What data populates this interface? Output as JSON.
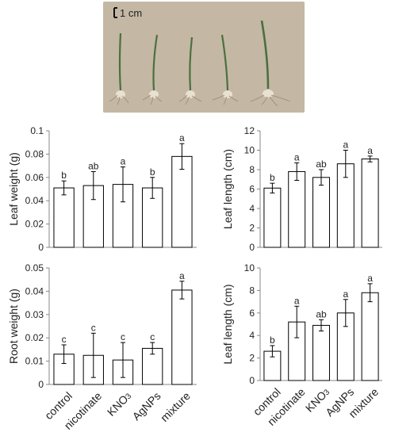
{
  "photo": {
    "scale_label": "1 cm",
    "colors": {
      "background": "#c8bba8",
      "leaf": "#3f6a3a",
      "root": "#9a8a70"
    }
  },
  "chart_data": [
    {
      "type": "bar",
      "categories": [
        "control",
        "nicotinate",
        "KNO3",
        "AgNPs",
        "mixture"
      ],
      "values": [
        0.051,
        0.053,
        0.054,
        0.051,
        0.078
      ],
      "errors": [
        0.006,
        0.012,
        0.015,
        0.009,
        0.011
      ],
      "letters": [
        "b",
        "ab",
        "a",
        "b",
        "a"
      ],
      "title": "",
      "xlabel": "",
      "ylabel": "Leaf weight (g)",
      "ylim": [
        0,
        0.1
      ],
      "yticks": [
        "0",
        "0.02",
        "0.04",
        "0.06",
        "0.08",
        "0.1"
      ],
      "show_xlabels": false,
      "grid": false
    },
    {
      "type": "bar",
      "categories": [
        "control",
        "nicotinate",
        "KNO3",
        "AgNPs",
        "mixture"
      ],
      "values": [
        6.1,
        7.8,
        7.2,
        8.6,
        9.1
      ],
      "errors": [
        0.5,
        0.9,
        0.8,
        1.4,
        0.3
      ],
      "letters": [
        "b",
        "a",
        "ab",
        "a",
        "a"
      ],
      "title": "",
      "xlabel": "",
      "ylabel": "Leaf length (cm)",
      "ylim": [
        0,
        12
      ],
      "yticks": [
        "0",
        "2",
        "4",
        "6",
        "8",
        "10",
        "12"
      ],
      "show_xlabels": false,
      "grid": false
    },
    {
      "type": "bar",
      "categories": [
        "control",
        "nicotinate",
        "KNO3",
        "AgNPs",
        "mixture"
      ],
      "values": [
        0.013,
        0.0125,
        0.0105,
        0.0155,
        0.0405
      ],
      "errors": [
        0.004,
        0.0095,
        0.0075,
        0.0025,
        0.0038
      ],
      "letters": [
        "c",
        "c",
        "c",
        "c",
        "a"
      ],
      "title": "",
      "xlabel": "",
      "ylabel": "Root weight (g)",
      "ylim": [
        0,
        0.05
      ],
      "yticks": [
        "0",
        "0.01",
        "0.02",
        "0.03",
        "0.04",
        "0.05"
      ],
      "show_xlabels": true,
      "grid": false
    },
    {
      "type": "bar",
      "categories": [
        "control",
        "nicotinate",
        "KNO3",
        "AgNPs",
        "mixture"
      ],
      "values": [
        2.6,
        5.2,
        4.9,
        6.0,
        7.8
      ],
      "errors": [
        0.5,
        1.4,
        0.5,
        1.2,
        0.8
      ],
      "letters": [
        "b",
        "a",
        "ab",
        "a",
        "a"
      ],
      "title": "",
      "xlabel": "",
      "ylabel": "Leaf length (cm)",
      "ylim": [
        0,
        10
      ],
      "yticks": [
        "0",
        "2",
        "4",
        "6",
        "8",
        "10"
      ],
      "show_xlabels": true,
      "grid": false
    }
  ]
}
